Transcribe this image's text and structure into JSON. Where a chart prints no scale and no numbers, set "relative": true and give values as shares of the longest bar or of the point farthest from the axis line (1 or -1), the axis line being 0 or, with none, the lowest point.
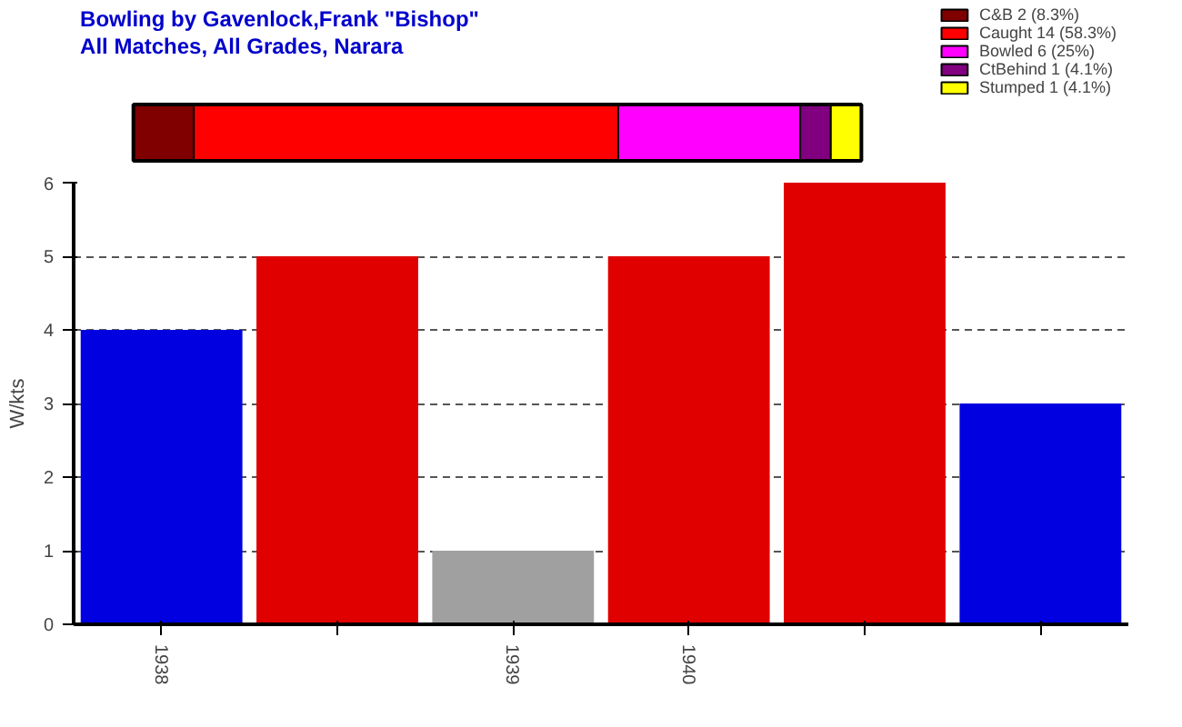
{
  "chart_data": [
    {
      "type": "bar",
      "orientation": "horizontal",
      "stacked": true,
      "relative": true,
      "title": "Bowling by Gavenlock,Frank \"Bishop\"",
      "subtitle": "All Matches, All Grades, Narara",
      "categories": [
        null
      ],
      "legend": "right",
      "series": [
        {
          "name": "C&B 2 (8.3%)",
          "color": "#800000",
          "values": [
            0.083
          ]
        },
        {
          "name": "Caught 14 (58.3%)",
          "color": "#ff0000",
          "values": [
            0.583
          ]
        },
        {
          "name": "Bowled 6 (25%)",
          "color": "#ff00ff",
          "values": [
            0.25
          ]
        },
        {
          "name": "CtBehind 1 (4.1%)",
          "color": "#800080",
          "values": [
            0.042
          ]
        },
        {
          "name": "Stumped 1 (4.1%)",
          "color": "#ffff00",
          "values": [
            0.042
          ]
        }
      ]
    },
    {
      "type": "bar",
      "ylabel": "W/kts",
      "categories": [
        "1938",
        null,
        "1939",
        "1940",
        null,
        null
      ],
      "values": [
        4,
        5,
        1,
        5,
        6,
        3
      ],
      "colors": [
        "#0000e0",
        "#e00000",
        "#a0a0a0",
        "#e00000",
        "#e00000",
        "#0000e0"
      ],
      "ylim": [
        0,
        6
      ],
      "yticks": [
        0,
        1,
        2,
        3,
        4,
        5,
        6
      ],
      "grid": "y"
    }
  ]
}
